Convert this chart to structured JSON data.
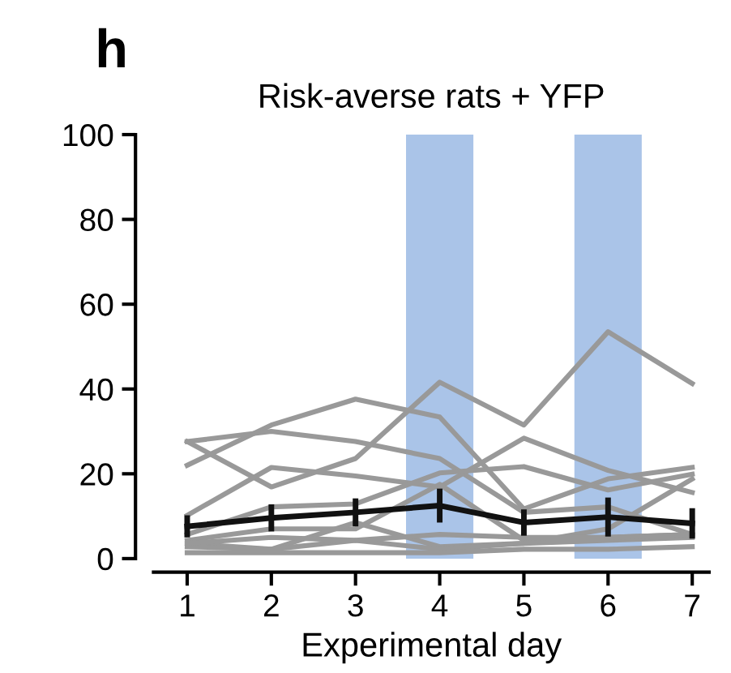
{
  "chart_data": {
    "type": "line",
    "title": "Risk-averse rats + YFP",
    "xlabel": "Experimental day",
    "annotations": [
      "h"
    ],
    "x": [
      1,
      2,
      3,
      4,
      5,
      6,
      7
    ],
    "xlim": [
      0.6,
      7.2
    ],
    "xticks": [
      1,
      2,
      3,
      4,
      5,
      6,
      7
    ],
    "ylim": [
      0,
      100
    ],
    "yticks": [
      0,
      20,
      40,
      60,
      80,
      100
    ],
    "grid": false,
    "legend": false,
    "marker": "none",
    "line_style": "solid",
    "bands": [
      {
        "axis": "x",
        "from": 3.6,
        "to": 4.4,
        "color": "#aac4e8"
      },
      {
        "axis": "x",
        "from": 5.6,
        "to": 6.4,
        "color": "#aac4e8"
      }
    ],
    "series": [
      {
        "color": "#999999",
        "values": [
          22,
          31.5,
          37.6,
          33.4,
          11.7,
          18.8,
          21.5
        ]
      },
      {
        "color": "#999999",
        "values": [
          27.6,
          16.9,
          23.6,
          41.6,
          31.5,
          53.5,
          41.3
        ]
      },
      {
        "color": "#999999",
        "values": [
          27.6,
          30,
          27.6,
          23.6,
          10.9,
          12.2,
          5.7
        ]
      },
      {
        "color": "#999999",
        "values": [
          10.2,
          21.5,
          19.5,
          16.9,
          28.4,
          20.8,
          15.6
        ]
      },
      {
        "color": "#999999",
        "values": [
          5.7,
          12.2,
          12.9,
          20.2,
          21.7,
          16.2,
          19.9
        ]
      },
      {
        "color": "#999999",
        "values": [
          4.3,
          7,
          7,
          17.5,
          4.3,
          5,
          5.7
        ]
      },
      {
        "color": "#999999",
        "values": [
          3.6,
          2.2,
          8.5,
          2.8,
          3.6,
          7,
          18.8
        ]
      },
      {
        "color": "#999999",
        "values": [
          2.8,
          2.2,
          4.3,
          2.2,
          3.6,
          4.3,
          5
        ]
      },
      {
        "color": "#999999",
        "values": [
          1.4,
          1.4,
          1.4,
          1.4,
          2.2,
          2.2,
          2.8
        ]
      },
      {
        "color": "#999999",
        "values": [
          3.6,
          5,
          4.3,
          5.7,
          5,
          5,
          5.7
        ]
      },
      {
        "color": "#111111",
        "values": [
          7.6,
          9.6,
          10.9,
          12.5,
          8.5,
          9.8,
          8.3
        ],
        "errors": [
          2.6,
          3.2,
          3.3,
          4,
          3.1,
          4.6,
          3.6
        ]
      }
    ]
  }
}
